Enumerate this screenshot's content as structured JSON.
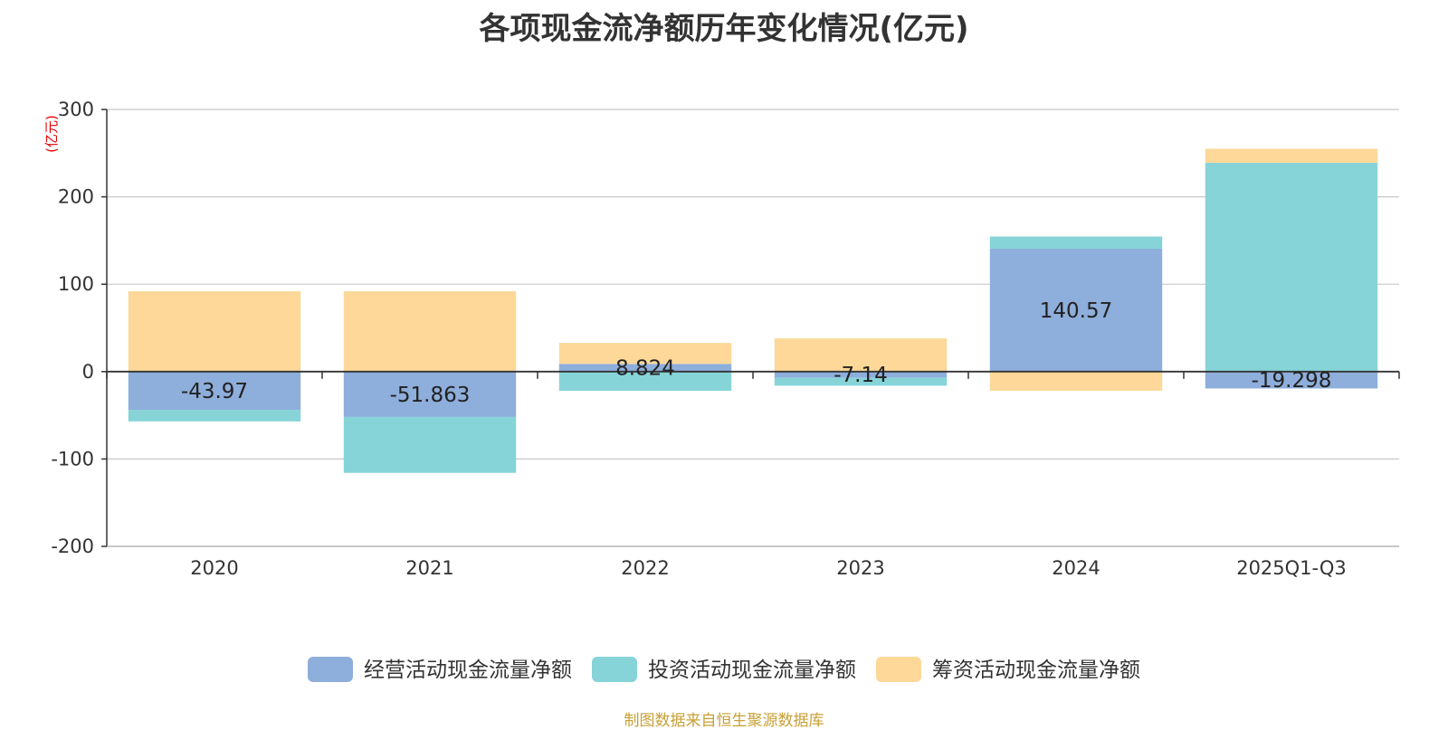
{
  "chart_data": {
    "type": "bar",
    "stacked": true,
    "title": "各项现金流净额历年变化情况(亿元)",
    "ylabel": "(亿元)",
    "ylim": [
      -200,
      300
    ],
    "yticks": [
      300,
      200,
      100,
      0,
      -100,
      -200
    ],
    "grid": true,
    "legend_position": "bottom",
    "categories": [
      "2020",
      "2021",
      "2022",
      "2023",
      "2024",
      "2025Q1-Q3"
    ],
    "series": [
      {
        "name": "经营活动现金流量净额",
        "color": "#8eaedb",
        "values": [
          -43.97,
          -51.863,
          8.824,
          -7.14,
          140.57,
          -19.298
        ],
        "labels": [
          "-43.97",
          "-51.863",
          "8.824",
          "-7.14",
          "140.57",
          "-19.298"
        ]
      },
      {
        "name": "投资活动现金流量净额",
        "color": "#86d4d8",
        "values": [
          -13,
          -64,
          -22,
          -9,
          14,
          239
        ],
        "labels": [
          "",
          "",
          "",
          "",
          "",
          ""
        ]
      },
      {
        "name": "筹资活动现金流量净额",
        "color": "#fdd898",
        "values": [
          92,
          92,
          24,
          38,
          -22,
          16
        ],
        "labels": [
          "",
          "",
          "",
          "",
          "",
          ""
        ]
      }
    ],
    "source": "制图数据来自恒生聚源数据库"
  }
}
